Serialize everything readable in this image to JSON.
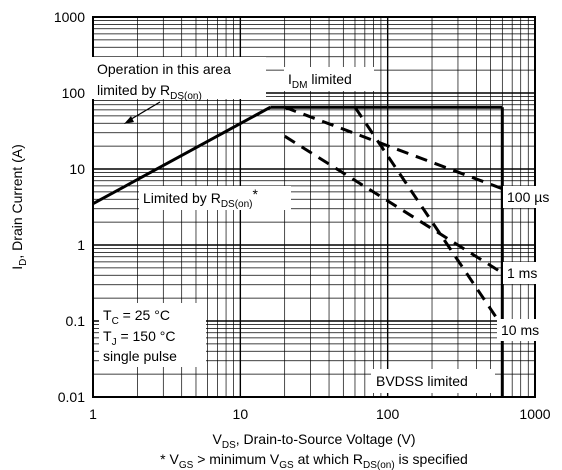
{
  "chart_data": {
    "type": "line",
    "x_scale": "log",
    "y_scale": "log",
    "xlim": [
      1,
      1000
    ],
    "ylim": [
      0.01,
      1000
    ],
    "grid": true,
    "x_tick_labels": [
      "1",
      "10",
      "100",
      "1000"
    ],
    "y_tick_labels": [
      "1000",
      "100",
      "10",
      "1",
      "0.1",
      "0.01"
    ],
    "xlabel": {
      "pre": "V",
      "sub": "DS",
      "post": ", Drain-to-Source Voltage (V)"
    },
    "ylabel": {
      "pre": "I",
      "sub": "D",
      "post": ", Drain Current (A)"
    },
    "footnote": {
      "p1": "* V",
      "s1": "GS",
      "p2": " > minimum V",
      "s2": "GS",
      "p3": " at which R",
      "s3": "DS(on)",
      "p4": " is specified"
    },
    "annotations": {
      "operation_line1": "Operation in this area",
      "operation_line2_pre": "limited by R",
      "operation_line2_sub": "DS(on)",
      "idm_pre": "I",
      "idm_sub": "DM",
      "idm_post": " limited",
      "rds_pre": "Limited by R",
      "rds_sub": "DS(on)",
      "rds_post": "*",
      "cond_tc_pre": "T",
      "cond_tc_sub": "C",
      "cond_tc_post": " = 25 °C",
      "cond_tj_pre": "T",
      "cond_tj_sub": "J",
      "cond_tj_post": " = 150 °C",
      "cond_pulse": "single pulse",
      "bvdss": "BVDSS limited",
      "t100us": "100 µs",
      "t1ms": "1 ms",
      "t10ms": "10 ms"
    },
    "series": [
      {
        "name": "Limited by RDS(on)",
        "style": "solid",
        "points": [
          [
            1,
            3.5
          ],
          [
            16,
            65
          ]
        ]
      },
      {
        "name": "IDM limited",
        "style": "solid",
        "points": [
          [
            16,
            65
          ],
          [
            600,
            65
          ]
        ]
      },
      {
        "name": "BVDSS limited",
        "style": "solid",
        "points": [
          [
            600,
            65
          ],
          [
            600,
            0.01
          ]
        ]
      },
      {
        "name": "100 µs",
        "style": "dashed",
        "points": [
          [
            20,
            65
          ],
          [
            600,
            5.5
          ]
        ]
      },
      {
        "name": "1 ms",
        "style": "dashed",
        "points": [
          [
            20,
            27
          ],
          [
            600,
            0.43
          ]
        ]
      },
      {
        "name": "10 ms",
        "style": "dashed",
        "points": [
          [
            60,
            65
          ],
          [
            600,
            0.085
          ]
        ]
      }
    ]
  }
}
